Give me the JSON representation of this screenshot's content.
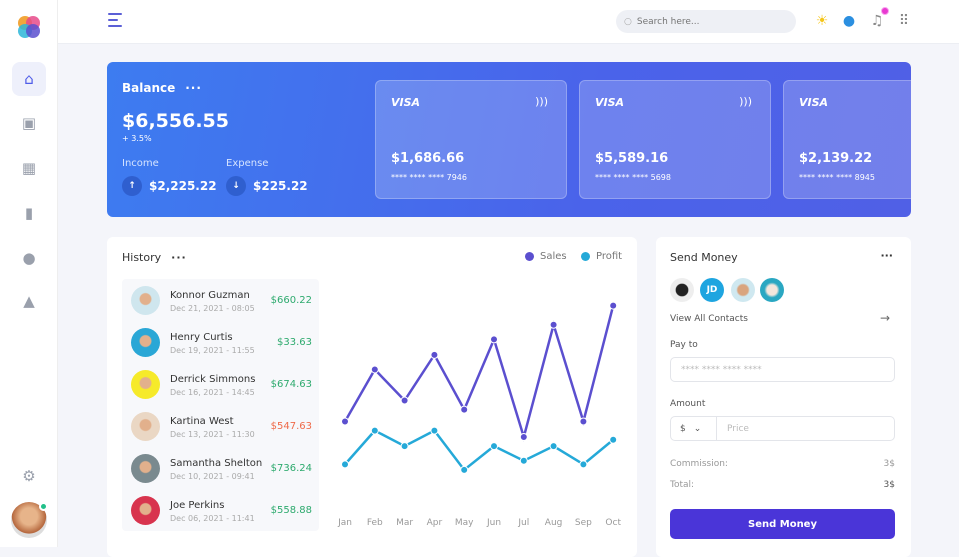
{
  "header": {
    "search_placeholder": "Search here...",
    "icons": [
      "menu-icon",
      "search-icon",
      "sun-icon",
      "palette-icon",
      "bell-icon",
      "apps-icon"
    ]
  },
  "sidebar": {
    "items": [
      "home-icon",
      "gift-icon",
      "dashboard-icon",
      "documents-icon",
      "shapes-icon",
      "shapes-alt-icon"
    ],
    "settings": "gear-icon"
  },
  "balance": {
    "title": "Balance",
    "amount": "$6,556.55",
    "change": "+ 3.5%",
    "income_label": "Income",
    "income": "$2,225.22",
    "expense_label": "Expense",
    "expense": "$225.22",
    "cards": [
      {
        "brand": "VISA",
        "amount": "$1,686.66",
        "number": "**** **** **** 7946"
      },
      {
        "brand": "VISA",
        "amount": "$5,589.16",
        "number": "**** **** **** 5698"
      },
      {
        "brand": "VISA",
        "amount": "$2,139.22",
        "number": "**** **** **** 8945"
      }
    ]
  },
  "history": {
    "title": "History",
    "items": [
      {
        "name": "Konnor Guzman",
        "date": "Dec 21, 2021 - 08:05",
        "amount": "$660.22",
        "status": "positive"
      },
      {
        "name": "Henry Curtis",
        "date": "Dec 19, 2021 - 11:55",
        "amount": "$33.63",
        "status": "positive"
      },
      {
        "name": "Derrick Simmons",
        "date": "Dec 16, 2021 - 14:45",
        "amount": "$674.63",
        "status": "positive"
      },
      {
        "name": "Kartina West",
        "date": "Dec 13, 2021 - 11:30",
        "amount": "$547.63",
        "status": "negative"
      },
      {
        "name": "Samantha Shelton",
        "date": "Dec 10, 2021 - 09:41",
        "amount": "$736.24",
        "status": "positive"
      },
      {
        "name": "Joe Perkins",
        "date": "Dec 06, 2021 - 11:41",
        "amount": "$558.88",
        "status": "positive"
      }
    ]
  },
  "colors": {
    "positive": "#2eaa6e",
    "negative": "#ef6b4a",
    "sales": "#5b4fcf",
    "profit": "#25a9d8",
    "accent": "#4a35d8"
  },
  "chart_data": {
    "type": "line",
    "categories": [
      "Jan",
      "Feb",
      "Mar",
      "Apr",
      "May",
      "Jun",
      "Jul",
      "Aug",
      "Sep",
      "Oct"
    ],
    "series": [
      {
        "name": "Sales",
        "values": [
          97,
          154,
          120,
          170,
          110,
          187,
          80,
          203,
          97,
          224
        ]
      },
      {
        "name": "Profit",
        "values": [
          50,
          87,
          70,
          87,
          44,
          70,
          54,
          70,
          50,
          77
        ]
      }
    ],
    "ylim": [
      0,
      240
    ],
    "grid": false,
    "legend": "top-right"
  },
  "send": {
    "title": "Send Money",
    "contact_initials": "JD",
    "view_all": "View All Contacts",
    "pay_to_label": "Pay to",
    "pay_to_placeholder": "**** **** **** ****",
    "amount_label": "Amount",
    "currency": "$",
    "price_placeholder": "Price",
    "commission_label": "Commission:",
    "commission": "3$",
    "total_label": "Total:",
    "total": "3$",
    "button": "Send Money"
  }
}
